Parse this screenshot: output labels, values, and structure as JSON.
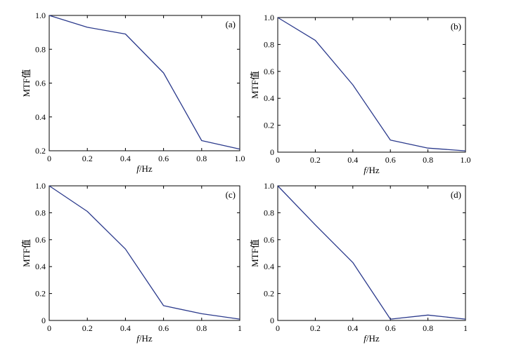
{
  "chart_data": [
    {
      "type": "line",
      "panel_label": "(a)",
      "xlabel_italic": "f",
      "xlabel_unit": "/Hz",
      "ylabel": "MTF值",
      "xlim": [
        0,
        1.0
      ],
      "ylim": [
        0.2,
        1.0
      ],
      "xticks": [
        "0",
        "0.2",
        "0.4",
        "0.6",
        "0.8",
        "1.0"
      ],
      "yticks": [
        "0.2",
        "0.4",
        "0.6",
        "0.8",
        "1.0"
      ],
      "x": [
        0,
        0.2,
        0.4,
        0.6,
        0.8,
        1.0
      ],
      "y": [
        1.0,
        0.93,
        0.89,
        0.66,
        0.26,
        0.21
      ],
      "line_color": "#2b3a8c"
    },
    {
      "type": "line",
      "panel_label": "(b)",
      "xlabel_italic": "f",
      "xlabel_unit": "/Hz",
      "ylabel": "MTF值",
      "xlim": [
        0,
        1.0
      ],
      "ylim": [
        0,
        1.0
      ],
      "xticks": [
        "0",
        "0.2",
        "0.4",
        "0.6",
        "0.8",
        "1.0"
      ],
      "yticks": [
        "0",
        "0.2",
        "0.4",
        "0.6",
        "0.8",
        "1.0"
      ],
      "x": [
        0,
        0.2,
        0.4,
        0.6,
        0.8,
        1.0
      ],
      "y": [
        1.0,
        0.83,
        0.5,
        0.09,
        0.03,
        0.01
      ],
      "line_color": "#2b3a8c"
    },
    {
      "type": "line",
      "panel_label": "(c)",
      "xlabel_italic": "f",
      "xlabel_unit": "/Hz",
      "ylabel": "MTF值",
      "xlim": [
        0,
        1
      ],
      "ylim": [
        0,
        1.0
      ],
      "xticks": [
        "0",
        "0.2",
        "0.4",
        "0.6",
        "0.8",
        "1"
      ],
      "yticks": [
        "0",
        "0.2",
        "0.4",
        "0.6",
        "0.8",
        "1.0"
      ],
      "x": [
        0,
        0.2,
        0.4,
        0.6,
        0.8,
        1.0
      ],
      "y": [
        1.0,
        0.81,
        0.53,
        0.11,
        0.05,
        0.01
      ],
      "line_color": "#2b3a8c"
    },
    {
      "type": "line",
      "panel_label": "(d)",
      "xlabel_italic": "f",
      "xlabel_unit": "/Hz",
      "ylabel": "MTF值",
      "xlim": [
        0,
        1
      ],
      "ylim": [
        0,
        1.0
      ],
      "xticks": [
        "0",
        "0.2",
        "0.4",
        "0.6",
        "0.8",
        "1"
      ],
      "yticks": [
        "0",
        "0.2",
        "0.4",
        "0.6",
        "0.8",
        "1.0"
      ],
      "x": [
        0,
        0.2,
        0.4,
        0.6,
        0.8,
        1.0
      ],
      "y": [
        1.0,
        0.71,
        0.43,
        0.01,
        0.04,
        0.01
      ],
      "line_color": "#2b3a8c"
    }
  ]
}
